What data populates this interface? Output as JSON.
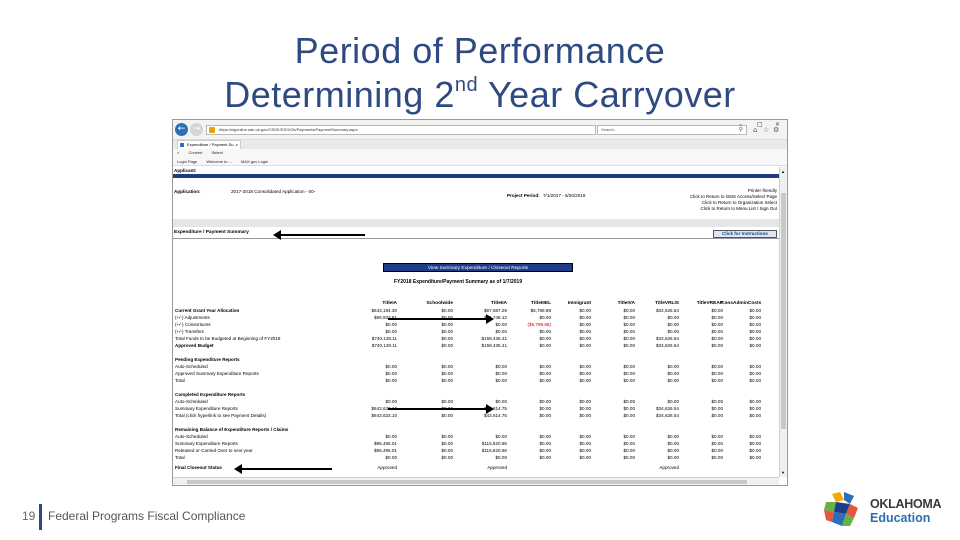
{
  "slide": {
    "title_line1": "Period of Performance",
    "title_line2_pre": "Determining 2",
    "title_line2_sup": "nd",
    "title_line2_post": " Year Carryover",
    "footer_page": "19",
    "footer_text": "Federal Programs Fiscal Compliance",
    "logo_line1": "OKLAHOMA",
    "logo_line2": "Education"
  },
  "browser": {
    "url": "https://sigonline.sde.ok.gov/OSDE/SSO/Ok/Payments/PaymentSummary.aspx",
    "search_placeholder": "Search...",
    "tab_label": "Expenditure / Payment Su...",
    "cmd_items": [
      "Convert",
      "Select"
    ],
    "fav_items": [
      "Login Page",
      "Welcome to ...",
      "MAX.gov Login"
    ]
  },
  "page": {
    "applicant_label": "Applicant:",
    "application_label": "Application:",
    "application_value": "2017-2018 Consolidated Application - 00-",
    "project_period_label": "Project Period:",
    "project_period_value": "7/1/2017 - 6/30/2018",
    "right_links": [
      "Printer-friendly",
      "Click to Return to GMS Access/Select Page",
      "Click to Return to Organization Select",
      "Click to Return to Menu List / Sign Out"
    ],
    "section_title": "Expenditure / Payment Summary",
    "instructions_button": "Click for Instructions",
    "view_button": "View Summary Expenditure / Closeout Reports",
    "summary_title": "FY2018 Expenditure/Payment Summary as of  1/7/2019"
  },
  "table": {
    "columns": [
      "TitleIA",
      "Schoolwide",
      "TitleIIA",
      "TitleIIIEL",
      "Immigrant",
      "TitleIVA",
      "TitleVRLIS",
      "TitleVREAP",
      "ConsAdminCosts"
    ],
    "rows": [
      {
        "label": "Current Grant Year Allocation",
        "bold": true,
        "values": [
          "$643,194.30",
          "$0.00",
          "$87,687.29",
          "$5,789.88",
          "$0.00",
          "$0.00",
          "$34,626.54",
          "$0.00",
          "$0.00"
        ]
      },
      {
        "label": "(+/-) Adjustments",
        "bold": false,
        "values": [
          "$96,933.81",
          "$0.00",
          "$71,748.12",
          "$0.00",
          "$0.00",
          "$0.00",
          "$0.00",
          "$0.00",
          "$0.00"
        ]
      },
      {
        "label": "(+/-) Consortiums",
        "bold": false,
        "values": [
          "$0.00",
          "$0.00",
          "$0.00",
          "($5,789.88)",
          "$0.00",
          "$0.00",
          "$0.00",
          "$0.00",
          "$0.00"
        ]
      },
      {
        "label": "(+/-) Transfers",
        "bold": false,
        "values": [
          "$0.00",
          "$0.00",
          "$0.00",
          "$0.00",
          "$0.00",
          "$0.00",
          "$0.00",
          "$0.00",
          "$0.00"
        ]
      },
      {
        "label": "Total Funds to be Budgeted at Beginning of FY2018",
        "bold": false,
        "values": [
          "$740,128.11",
          "$0.00",
          "$159,435.41",
          "$0.00",
          "$0.00",
          "$0.00",
          "$34,626.54",
          "$0.00",
          "$0.00"
        ]
      },
      {
        "label": "Approved Budget",
        "bold": true,
        "values": [
          "$740,128.11",
          "$0.00",
          "$159,435.41",
          "$0.00",
          "$0.00",
          "$0.00",
          "$34,626.54",
          "$0.00",
          "$0.00"
        ]
      },
      {
        "label": "Pending Expenditure Reports",
        "bold": true,
        "values": []
      },
      {
        "label": "Auto-Scheduled",
        "bold": false,
        "values": [
          "$0.00",
          "$0.00",
          "$0.00",
          "$0.00",
          "$0.00",
          "$0.00",
          "$0.00",
          "$0.00",
          "$0.00"
        ]
      },
      {
        "label": "Approved Summary Expenditure Reports",
        "bold": false,
        "values": [
          "$0.00",
          "$0.00",
          "$0.00",
          "$0.00",
          "$0.00",
          "$0.00",
          "$0.00",
          "$0.00",
          "$0.00"
        ]
      },
      {
        "label": "Total",
        "bold": false,
        "values": [
          "$0.00",
          "$0.00",
          "$0.00",
          "$0.00",
          "$0.00",
          "$0.00",
          "$0.00",
          "$0.00",
          "$0.00"
        ]
      },
      {
        "label": "Completed Expenditure Reports",
        "bold": true,
        "values": []
      },
      {
        "label": "Auto-Scheduled",
        "bold": false,
        "values": [
          "$0.00",
          "$0.00",
          "$0.00",
          "$0.00",
          "$0.00",
          "$0.00",
          "$0.00",
          "$0.00",
          "$0.00"
        ]
      },
      {
        "label": "Summary Expenditure Reports",
        "bold": false,
        "values": [
          "$643,633.10",
          "$0.00",
          "$43,614.75",
          "$0.00",
          "$0.00",
          "$0.00",
          "$34,626.54",
          "$0.00",
          "$0.00"
        ]
      },
      {
        "label": "Total (click hyperlink to see Payment Details)",
        "bold": false,
        "values": [
          "$643,633.10",
          "$0.00",
          "$43,614.75",
          "$0.00",
          "$0.00",
          "$0.00",
          "$34,626.54",
          "$0.00",
          "$0.00"
        ]
      },
      {
        "label": "Remaining Balance of Expenditure Reports / Claims",
        "bold": true,
        "values": []
      },
      {
        "label": "Auto-Scheduled",
        "bold": false,
        "values": [
          "$0.00",
          "$0.00",
          "$0.00",
          "$0.00",
          "$0.00",
          "$0.00",
          "$0.00",
          "$0.00",
          "$0.00"
        ]
      },
      {
        "label": "Summary Expenditure Reports",
        "bold": false,
        "values": [
          "$96,495.01",
          "$0.00",
          "$115,820.66",
          "$0.00",
          "$0.00",
          "$0.00",
          "$0.00",
          "$0.00",
          "$0.00"
        ]
      },
      {
        "label": "Released or Carried Over to next year",
        "bold": false,
        "values": [
          "$96,495.01",
          "$0.00",
          "$115,820.66",
          "$0.00",
          "$0.00",
          "$0.00",
          "$0.00",
          "$0.00",
          "$0.00"
        ]
      },
      {
        "label": "Total",
        "bold": false,
        "values": [
          "$0.00",
          "$0.00",
          "$0.00",
          "$0.00",
          "$0.00",
          "$0.00",
          "$0.00",
          "$0.00",
          "$0.00"
        ]
      },
      {
        "label": "Final Closeout Status",
        "bold": true,
        "values": [
          "Approved",
          "",
          "Approved",
          "",
          "",
          "",
          "Approved",
          "",
          ""
        ]
      }
    ]
  }
}
